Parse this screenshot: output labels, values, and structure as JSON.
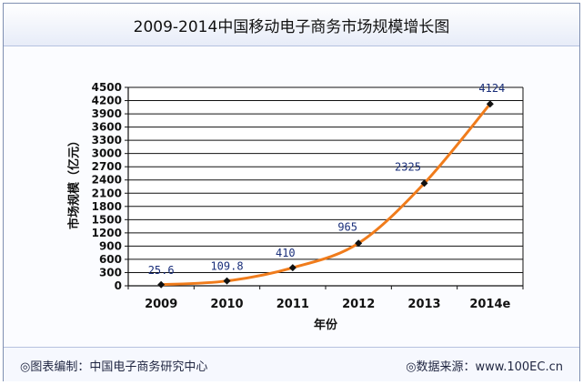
{
  "title": "2009-2014中国移动电子商务市场规模增长图",
  "footer": {
    "credit": "◎图表编制：中国电子商务研究中心",
    "source": "◎数据来源：www.100EC.cn"
  },
  "colors": {
    "line": "#f07c1c",
    "marker": "#111111",
    "grid": "#111111",
    "data_label": "#1a2f7a"
  },
  "chart_data": {
    "type": "line",
    "title": "2009-2014中国移动电子商务市场规模增长图",
    "xlabel": "年份",
    "ylabel": "市场规模（亿元）",
    "categories": [
      "2009",
      "2010",
      "2011",
      "2012",
      "2013",
      "2014e"
    ],
    "values": [
      25.6,
      109.8,
      410,
      965,
      2325,
      4124
    ],
    "data_labels": [
      "25.6",
      "109.8",
      "410",
      "965",
      "2325",
      "4124"
    ],
    "ylim": [
      0,
      4500
    ],
    "yticks": [
      0,
      300,
      600,
      900,
      1200,
      1500,
      1800,
      2100,
      2400,
      2700,
      3000,
      3300,
      3600,
      3900,
      4200,
      4500
    ],
    "grid": true,
    "legend": "none"
  }
}
